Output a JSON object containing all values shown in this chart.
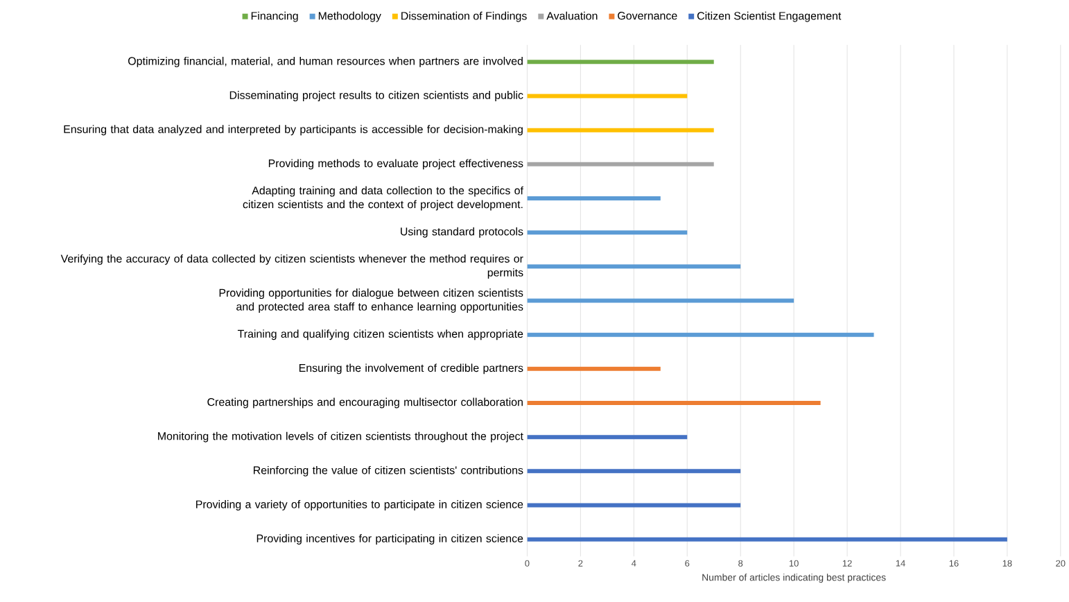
{
  "chart_data": {
    "type": "bar",
    "orientation": "horizontal",
    "xlabel": "Number  of articles indicating best practices",
    "categories": [
      "Optimizing financial, material, and human resources when partners are involved",
      "Disseminating project results to citizen scientists and public",
      "Ensuring that data analyzed and interpreted by participants is accessible for decision-making",
      "Providing methods to evaluate project effectiveness",
      "Adapting training and data collection to the specifics of citizen scientists and the context of project development.",
      "Using standard protocols",
      "Verifying the accuracy of data collected by citizen scientists whenever the method requires or permits",
      "Providing opportunities for dialogue between citizen scientists and protected area staff to enhance learning opportunities",
      "Training and qualifying citizen scientists when appropriate",
      "Ensuring the involvement of credible partners",
      "Creating partnerships and encouraging multisector collaboration",
      "Monitoring the motivation levels of citizen scientists throughout the project",
      "Reinforcing the value of citizen scientists' contributions",
      "Providing a variety of opportunities to participate in citizen science",
      "Providing incentives for participating in citizen science"
    ],
    "series": [
      {
        "name": "Financing",
        "color": "#70ad47",
        "values": [
          7,
          null,
          null,
          null,
          null,
          null,
          null,
          null,
          null,
          null,
          null,
          null,
          null,
          null,
          null
        ]
      },
      {
        "name": "Methodology",
        "color": "#5b9bd5",
        "values": [
          null,
          null,
          null,
          null,
          5,
          6,
          8,
          10,
          13,
          null,
          null,
          null,
          null,
          null,
          null
        ]
      },
      {
        "name": "Dissemination of Findings",
        "color": "#ffc000",
        "values": [
          null,
          6,
          7,
          null,
          null,
          null,
          null,
          null,
          null,
          null,
          null,
          null,
          null,
          null,
          null
        ]
      },
      {
        "name": "Avaluation",
        "color": "#a5a5a5",
        "values": [
          null,
          null,
          null,
          7,
          null,
          null,
          null,
          null,
          null,
          null,
          null,
          null,
          null,
          null,
          null
        ]
      },
      {
        "name": "Governance",
        "color": "#ed7d31",
        "values": [
          null,
          null,
          null,
          null,
          null,
          null,
          null,
          null,
          null,
          5,
          11,
          null,
          null,
          null,
          null
        ]
      },
      {
        "name": "Citizen Scientist Engagement",
        "color": "#4472c4",
        "values": [
          null,
          null,
          null,
          null,
          null,
          null,
          null,
          null,
          null,
          null,
          null,
          6,
          8,
          8,
          18
        ]
      }
    ],
    "xlim": [
      0,
      20
    ],
    "xticks": [
      0,
      2,
      4,
      6,
      8,
      10,
      12,
      14,
      16,
      18,
      20
    ],
    "grid": "x",
    "legend": "top"
  }
}
